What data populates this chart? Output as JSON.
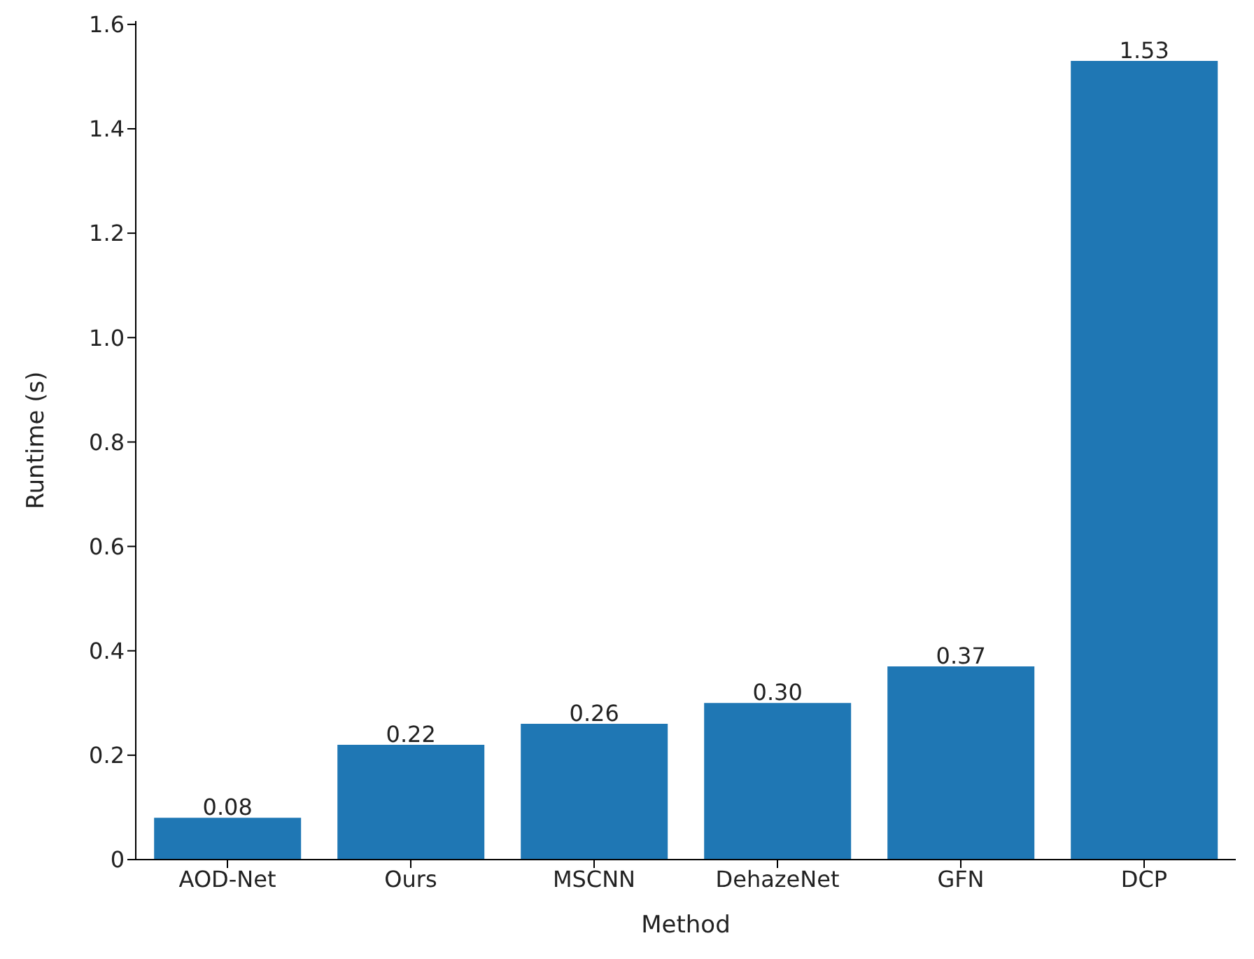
{
  "chart_data": {
    "type": "bar",
    "xlabel": "Method",
    "ylabel": "Runtime (s)",
    "categories": [
      "AOD-Net",
      "Ours",
      "MSCNN",
      "DehazeNet",
      "GFN",
      "DCP"
    ],
    "values": [
      0.08,
      0.22,
      0.26,
      0.3,
      0.37,
      1.53
    ],
    "value_labels": [
      "0.08",
      "0.22",
      "0.26",
      "0.30",
      "0.37",
      "1.53"
    ],
    "color": "#1f77b4",
    "ylim": [
      0,
      1.6065
    ],
    "yticks": [
      0,
      {
        "value": 0.2,
        "label": "0.2"
      },
      {
        "value": 0.4,
        "label": "0.4"
      },
      {
        "value": 0.6,
        "label": "0.6"
      },
      {
        "value": 0.8,
        "label": "0.8"
      },
      {
        "value": 1.0,
        "label": "1.0"
      },
      {
        "value": 1.2,
        "label": "1.2"
      },
      {
        "value": 1.4,
        "label": "1.4"
      },
      {
        "value": 1.6,
        "label": "1.6"
      }
    ],
    "grid": false,
    "legend": false
  }
}
